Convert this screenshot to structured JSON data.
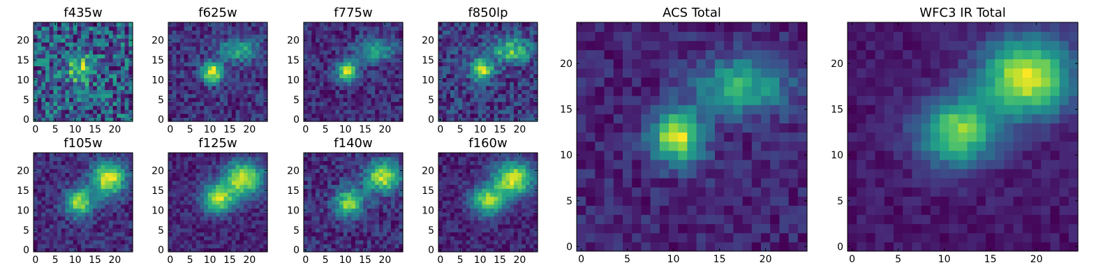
{
  "chart_data": [
    {
      "type": "heatmap",
      "title": "f435w",
      "xlabel": "",
      "ylabel": "",
      "xlim": [
        0,
        24
      ],
      "ylim": [
        0,
        24
      ],
      "x_ticks": [
        "0",
        "5",
        "10",
        "15",
        "20"
      ],
      "y_ticks": [
        "0",
        "5",
        "10",
        "15",
        "20"
      ],
      "grid": false,
      "colormap": "viridis",
      "noise": 0.55,
      "sources": [
        {
          "x": 11.5,
          "y": 12.5,
          "sigma_x": 2.2,
          "sigma_y": 2.2,
          "amp": 0.55
        }
      ]
    },
    {
      "type": "heatmap",
      "title": "f625w",
      "xlabel": "",
      "ylabel": "",
      "xlim": [
        0,
        24
      ],
      "ylim": [
        0,
        24
      ],
      "x_ticks": [
        "0",
        "5",
        "10",
        "15",
        "20"
      ],
      "y_ticks": [
        "0",
        "5",
        "10",
        "15",
        "20"
      ],
      "grid": false,
      "colormap": "viridis",
      "noise": 0.35,
      "sources": [
        {
          "x": 10.5,
          "y": 12.0,
          "sigma_x": 1.8,
          "sigma_y": 1.8,
          "amp": 1.0
        },
        {
          "x": 17.5,
          "y": 17.5,
          "sigma_x": 3.5,
          "sigma_y": 2.0,
          "amp": 0.55
        }
      ]
    },
    {
      "type": "heatmap",
      "title": "f775w",
      "xlabel": "",
      "ylabel": "",
      "xlim": [
        0,
        24
      ],
      "ylim": [
        0,
        24
      ],
      "x_ticks": [
        "0",
        "5",
        "10",
        "15",
        "20"
      ],
      "y_ticks": [
        "0",
        "5",
        "10",
        "15",
        "20"
      ],
      "grid": false,
      "colormap": "viridis",
      "noise": 0.35,
      "sources": [
        {
          "x": 10.5,
          "y": 12.0,
          "sigma_x": 1.8,
          "sigma_y": 1.8,
          "amp": 1.0
        },
        {
          "x": 17.5,
          "y": 17.5,
          "sigma_x": 3.5,
          "sigma_y": 2.0,
          "amp": 0.6
        }
      ]
    },
    {
      "type": "heatmap",
      "title": "f850lp",
      "xlabel": "",
      "ylabel": "",
      "xlim": [
        0,
        24
      ],
      "ylim": [
        0,
        24
      ],
      "x_ticks": [
        "0",
        "5",
        "10",
        "15",
        "20"
      ],
      "y_ticks": [
        "0",
        "5",
        "10",
        "15",
        "20"
      ],
      "grid": false,
      "colormap": "viridis",
      "noise": 0.45,
      "sources": [
        {
          "x": 10.5,
          "y": 12.5,
          "sigma_x": 2.0,
          "sigma_y": 2.0,
          "amp": 0.9
        },
        {
          "x": 18.0,
          "y": 17.5,
          "sigma_x": 3.5,
          "sigma_y": 2.2,
          "amp": 0.7
        }
      ]
    },
    {
      "type": "heatmap",
      "title": "f105w",
      "xlabel": "",
      "ylabel": "",
      "xlim": [
        0,
        24
      ],
      "ylim": [
        0,
        24
      ],
      "x_ticks": [
        "0",
        "5",
        "10",
        "15",
        "20"
      ],
      "y_ticks": [
        "0",
        "5",
        "10",
        "15",
        "20"
      ],
      "grid": false,
      "colormap": "viridis",
      "noise": 0.3,
      "sources": [
        {
          "x": 11.0,
          "y": 12.0,
          "sigma_x": 2.5,
          "sigma_y": 2.5,
          "amp": 0.9
        },
        {
          "x": 18.5,
          "y": 18.0,
          "sigma_x": 3.0,
          "sigma_y": 3.0,
          "amp": 1.0
        }
      ]
    },
    {
      "type": "heatmap",
      "title": "f125w",
      "xlabel": "",
      "ylabel": "",
      "xlim": [
        0,
        24
      ],
      "ylim": [
        0,
        24
      ],
      "x_ticks": [
        "0",
        "5",
        "10",
        "15",
        "20"
      ],
      "y_ticks": [
        "0",
        "5",
        "10",
        "15",
        "20"
      ],
      "grid": false,
      "colormap": "viridis",
      "noise": 0.25,
      "sources": [
        {
          "x": 12.0,
          "y": 13.0,
          "sigma_x": 2.8,
          "sigma_y": 2.5,
          "amp": 0.95
        },
        {
          "x": 18.5,
          "y": 18.0,
          "sigma_x": 3.5,
          "sigma_y": 3.0,
          "amp": 1.0
        }
      ]
    },
    {
      "type": "heatmap",
      "title": "f140w",
      "xlabel": "",
      "ylabel": "",
      "xlim": [
        0,
        24
      ],
      "ylim": [
        0,
        24
      ],
      "x_ticks": [
        "0",
        "5",
        "10",
        "15",
        "20"
      ],
      "y_ticks": [
        "0",
        "5",
        "10",
        "15",
        "20"
      ],
      "grid": false,
      "colormap": "viridis",
      "noise": 0.35,
      "sources": [
        {
          "x": 11.0,
          "y": 12.0,
          "sigma_x": 2.5,
          "sigma_y": 2.5,
          "amp": 0.9
        },
        {
          "x": 19.5,
          "y": 18.5,
          "sigma_x": 3.0,
          "sigma_y": 2.8,
          "amp": 1.0
        }
      ]
    },
    {
      "type": "heatmap",
      "title": "f160w",
      "xlabel": "",
      "ylabel": "",
      "xlim": [
        0,
        24
      ],
      "ylim": [
        0,
        24
      ],
      "x_ticks": [
        "0",
        "5",
        "10",
        "15",
        "20"
      ],
      "y_ticks": [
        "0",
        "5",
        "10",
        "15",
        "20"
      ],
      "grid": false,
      "colormap": "viridis",
      "noise": 0.25,
      "sources": [
        {
          "x": 12.0,
          "y": 12.5,
          "sigma_x": 3.0,
          "sigma_y": 2.6,
          "amp": 0.85
        },
        {
          "x": 18.5,
          "y": 18.0,
          "sigma_x": 3.5,
          "sigma_y": 3.0,
          "amp": 1.0
        }
      ]
    },
    {
      "type": "heatmap",
      "title": "ACS Total",
      "xlabel": "",
      "ylabel": "",
      "xlim": [
        0,
        24
      ],
      "ylim": [
        0,
        24
      ],
      "x_ticks": [
        "0",
        "5",
        "10",
        "15",
        "20"
      ],
      "y_ticks": [
        "0",
        "5",
        "10",
        "15",
        "20"
      ],
      "grid": false,
      "colormap": "viridis",
      "noise": 0.25,
      "sources": [
        {
          "x": 10.5,
          "y": 12.0,
          "sigma_x": 2.0,
          "sigma_y": 2.0,
          "amp": 1.0
        },
        {
          "x": 17.5,
          "y": 17.5,
          "sigma_x": 3.5,
          "sigma_y": 2.2,
          "amp": 0.65
        }
      ]
    },
    {
      "type": "heatmap",
      "title": "WFC3 IR Total",
      "xlabel": "",
      "ylabel": "",
      "xlim": [
        0,
        24
      ],
      "ylim": [
        0,
        24
      ],
      "x_ticks": [
        "0",
        "5",
        "10",
        "15",
        "20"
      ],
      "y_ticks": [
        "0",
        "5",
        "10",
        "15",
        "20"
      ],
      "grid": false,
      "colormap": "viridis",
      "noise": 0.15,
      "sources": [
        {
          "x": 11.5,
          "y": 12.5,
          "sigma_x": 3.0,
          "sigma_y": 2.6,
          "amp": 0.85
        },
        {
          "x": 19.0,
          "y": 18.5,
          "sigma_x": 3.5,
          "sigma_y": 3.0,
          "amp": 1.0
        }
      ]
    }
  ]
}
